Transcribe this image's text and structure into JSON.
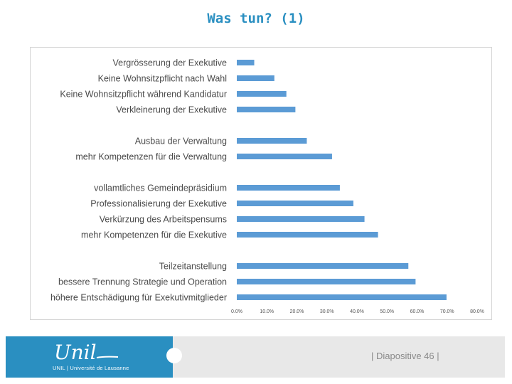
{
  "slide": {
    "title": "Was tun? (1)",
    "footer_caption": "UNIL | Université de Lausanne",
    "slide_number": "| Diapositive 46 |",
    "logo_text": "Unil"
  },
  "colors": {
    "bar": "#5b9bd5",
    "title": "#2a8fc1",
    "footer_blue": "#2a8fc1",
    "footer_grey": "#e8e8e8"
  },
  "chart_data": {
    "type": "bar",
    "orientation": "horizontal",
    "title": "",
    "xlabel": "",
    "ylabel": "",
    "xlim": [
      0,
      80
    ],
    "x_ticks": [
      "0.0%",
      "10.0%",
      "20.0%",
      "30.0%",
      "40.0%",
      "50.0%",
      "60.0%",
      "70.0%",
      "80.0%"
    ],
    "grid": false,
    "legend": "none",
    "groups": [
      {
        "categories": [
          "Vergrösserung der Exekutive",
          "Keine Wohnsitzpflicht nach  Wahl",
          "Keine Wohnsitzpflicht während Kandidatur",
          "Verkleinerung der Exekutive"
        ],
        "values": [
          5.8,
          12.5,
          16.5,
          19.5
        ]
      },
      {
        "categories": [
          "Ausbau der Verwaltung",
          "mehr Kompetenzen für die Verwaltung"
        ],
        "values": [
          23.3,
          31.7
        ]
      },
      {
        "categories": [
          "vollamtliches Gemeindepräsidium",
          "Professionalisierung der Exekutive",
          "Verkürzung des Arbeitspensums",
          "mehr Kompetenzen für die Exekutive"
        ],
        "values": [
          34.3,
          38.8,
          42.5,
          47.0
        ]
      },
      {
        "categories": [
          "Teilzeitanstellung",
          "bessere Trennung Strategie und Operation",
          "höhere Entschädigung für Exekutivmitglieder"
        ],
        "values": [
          57.1,
          59.5,
          69.8
        ]
      }
    ]
  }
}
